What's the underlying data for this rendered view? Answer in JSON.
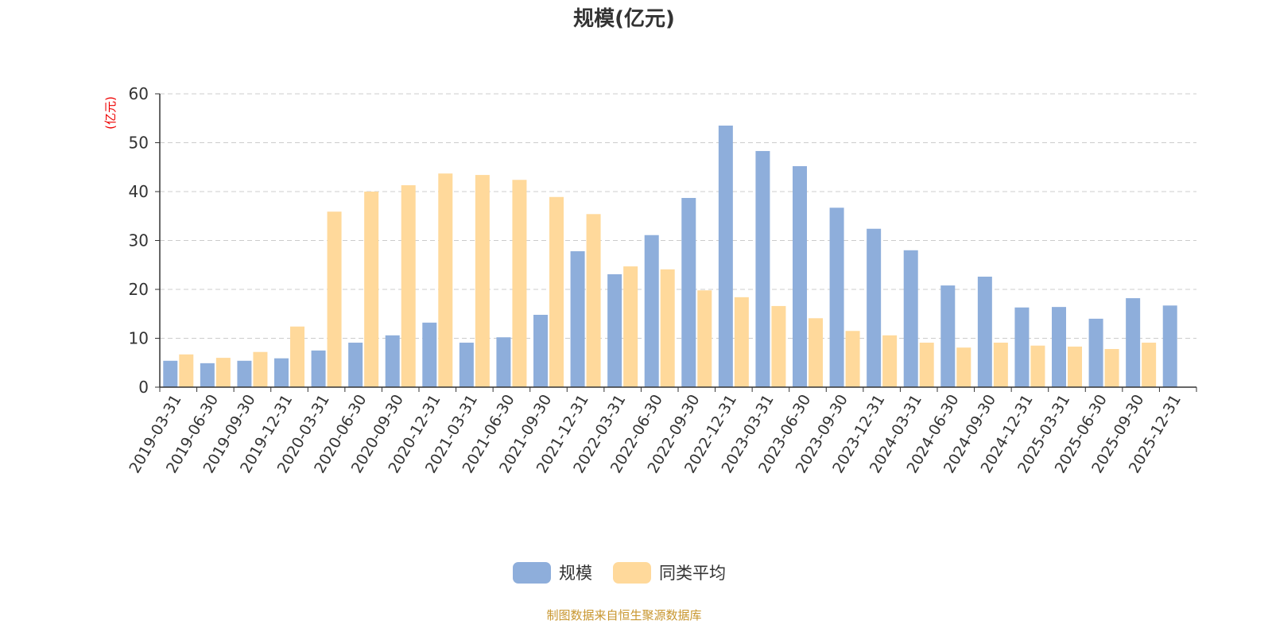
{
  "chart_data": {
    "type": "bar",
    "title": "规模(亿元)",
    "ylabel": "(亿元)",
    "xlabel": "",
    "ylim": [
      0,
      60
    ],
    "yticks": [
      0,
      10,
      20,
      30,
      40,
      50,
      60
    ],
    "grid": true,
    "legend_position": "bottom-center",
    "categories": [
      "2019-03-31",
      "2019-06-30",
      "2019-09-30",
      "2019-12-31",
      "2020-03-31",
      "2020-06-30",
      "2020-09-30",
      "2020-12-31",
      "2021-03-31",
      "2021-06-30",
      "2021-09-30",
      "2021-12-31",
      "2022-03-31",
      "2022-06-30",
      "2022-09-30",
      "2022-12-31",
      "2023-03-31",
      "2023-06-30",
      "2023-09-30",
      "2023-12-31",
      "2024-03-31",
      "2024-06-30",
      "2024-09-30",
      "2024-12-31",
      "2025-03-31",
      "2025-06-30",
      "2025-09-30",
      "2025-12-31"
    ],
    "series": [
      {
        "name": "规模",
        "color": "#8eaedb",
        "values": [
          5.4,
          4.9,
          5.4,
          5.9,
          7.5,
          9.1,
          10.6,
          13.2,
          9.1,
          10.2,
          14.8,
          27.8,
          23.1,
          31.1,
          38.7,
          53.5,
          48.3,
          45.2,
          36.7,
          32.4,
          28.0,
          20.8,
          22.6,
          16.3,
          16.4,
          14.0,
          18.2,
          16.7
        ]
      },
      {
        "name": "同类平均",
        "color": "#ffd99b",
        "values": [
          6.7,
          6.0,
          7.2,
          12.4,
          35.9,
          40.0,
          41.3,
          43.7,
          43.4,
          42.4,
          38.9,
          35.4,
          24.7,
          24.1,
          19.8,
          18.4,
          16.6,
          14.1,
          11.5,
          10.6,
          9.1,
          8.1,
          9.1,
          8.5,
          8.3,
          7.8,
          9.1,
          null
        ]
      }
    ]
  },
  "footer": "制图数据来自恒生聚源数据库"
}
